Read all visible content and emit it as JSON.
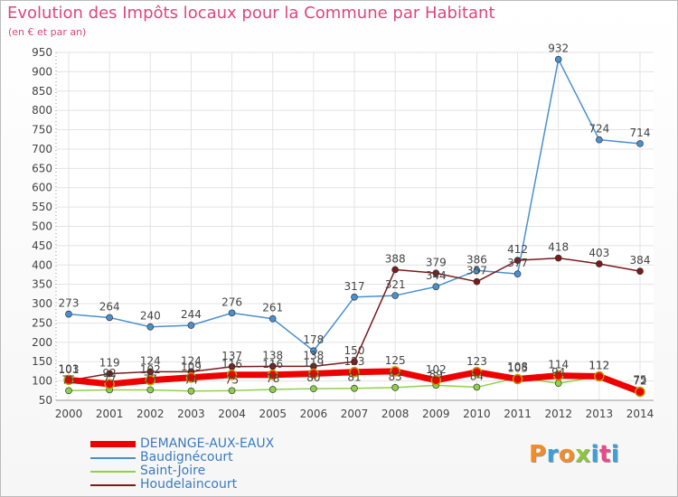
{
  "header": {
    "title": "Evolution des Impôts locaux pour la Commune par Habitant",
    "subtitle": "(en € et par an)"
  },
  "logo": {
    "text": "Proxiti",
    "colors": [
      "#f28c28",
      "#3aa0d8",
      "#f28c28",
      "#8cc63f",
      "#3aa0d8",
      "#e84b8a",
      "#3aa0d8"
    ]
  },
  "chart_data": {
    "type": "line",
    "x": [
      "2000",
      "2001",
      "2002",
      "2003",
      "2004",
      "2005",
      "2006",
      "2007",
      "2008",
      "2009",
      "2010",
      "2011",
      "2012",
      "2013",
      "2014"
    ],
    "ylim": [
      50,
      950
    ],
    "yticks": [
      50,
      100,
      150,
      200,
      250,
      300,
      350,
      400,
      450,
      500,
      550,
      600,
      650,
      700,
      750,
      800,
      850,
      900,
      950
    ],
    "grid": true,
    "legend_position": "bottom-left",
    "series": [
      {
        "name": "DEMANGE-AUX-EAUX",
        "color": "#ee0000",
        "values": [
          103,
          92,
          102,
          109,
          116,
          116,
          119,
          123,
          125,
          102,
          123,
          105,
          114,
          112,
          72
        ],
        "labels": [
          "103",
          "92",
          "102",
          "109",
          "116",
          "116",
          "119",
          "123",
          "125",
          "102",
          "123",
          "105",
          "114",
          "112",
          "72"
        ]
      },
      {
        "name": "Baudignécourt",
        "color": "#4a90d0",
        "values": [
          273,
          264,
          240,
          244,
          276,
          261,
          178,
          317,
          321,
          344,
          386,
          377,
          932,
          724,
          714
        ],
        "labels": [
          "273",
          "264",
          "240",
          "244",
          "276",
          "261",
          "178",
          "317",
          "321",
          "344",
          "386",
          "377",
          "932",
          "724",
          "714"
        ]
      },
      {
        "name": "Saint-Joire",
        "color": "#8fd04a",
        "values": [
          75,
          77,
          77,
          74,
          75,
          78,
          80,
          81,
          83,
          89,
          84,
          108,
          94,
          112,
          75
        ],
        "labels": [
          "75",
          "77",
          "77",
          "74",
          "75",
          "78",
          "80",
          "81",
          "83",
          "89",
          "84",
          "108",
          "94",
          "112",
          "75"
        ]
      },
      {
        "name": "Houdelaincourt",
        "color": "#7b1a1a",
        "values": [
          101,
          119,
          124,
          124,
          137,
          138,
          138,
          150,
          388,
          379,
          357,
          412,
          418,
          403,
          384
        ],
        "labels": [
          "101",
          "119",
          "124",
          "124",
          "137",
          "138",
          "138",
          "150",
          "388",
          "379",
          "357",
          "412",
          "418",
          "403",
          "384"
        ]
      }
    ]
  }
}
